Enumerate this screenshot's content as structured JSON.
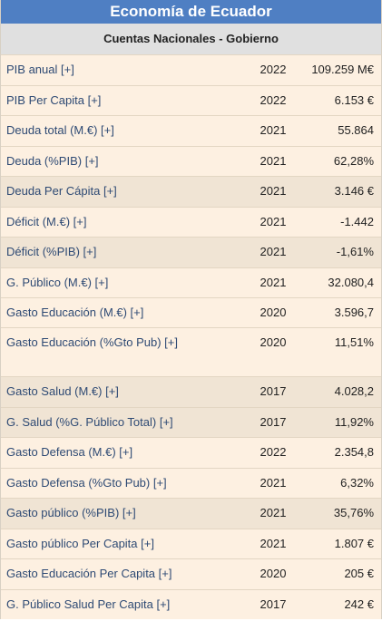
{
  "header": {
    "title": "Economía de Ecuador",
    "subtitle": "Cuentas Nacionales - Gobierno"
  },
  "rows": [
    {
      "label": "PIB anual [+]",
      "year": "2022",
      "value": "109.259 M€"
    },
    {
      "label": "PIB Per Capita [+]",
      "year": "2022",
      "value": "6.153 €"
    },
    {
      "label": "Deuda total (M.€) [+]",
      "year": "2021",
      "value": "55.864"
    },
    {
      "label": "Deuda (%PIB) [+]",
      "year": "2021",
      "value": "62,28%"
    },
    {
      "label": "Deuda Per Cápita [+]",
      "year": "2021",
      "value": "3.146 €"
    },
    {
      "label": "Déficit (M.€) [+]",
      "year": "2021",
      "value": "-1.442"
    },
    {
      "label": "Déficit (%PIB) [+]",
      "year": "2021",
      "value": "-1,61%"
    },
    {
      "label": "G. Público (M.€) [+]",
      "year": "2021",
      "value": "32.080,4"
    },
    {
      "label": "Gasto Educación (M.€) [+]",
      "year": "2020",
      "value": "3.596,7"
    },
    {
      "label": "Gasto Educación (%Gto Pub) [+]",
      "year": "2020",
      "value": "11,51%"
    },
    {
      "label": "Gasto Salud (M.€) [+]",
      "year": "2017",
      "value": "4.028,2"
    },
    {
      "label": "G. Salud (%G. Público Total) [+]",
      "year": "2017",
      "value": "11,92%"
    },
    {
      "label": "Gasto Defensa (M.€) [+]",
      "year": "2022",
      "value": "2.354,8"
    },
    {
      "label": "Gasto Defensa (%Gto Pub) [+]",
      "year": "2021",
      "value": "6,32%"
    },
    {
      "label": "Gasto público (%PIB) [+]",
      "year": "2021",
      "value": "35,76%"
    },
    {
      "label": "Gasto público Per Capita [+]",
      "year": "2021",
      "value": "1.807 €"
    },
    {
      "label": "Gasto Educación Per Capita [+]",
      "year": "2020",
      "value": "205 €"
    },
    {
      "label": "G. Público Salud Per Capita [+]",
      "year": "2017",
      "value": "242 €"
    }
  ],
  "colors": {
    "title_bg": "#4f7fc3",
    "subtitle_bg": "#e0e0e0",
    "row_light": "#fdf0e1",
    "row_dark": "#f0e4d4",
    "link_text": "#2e4a74"
  }
}
